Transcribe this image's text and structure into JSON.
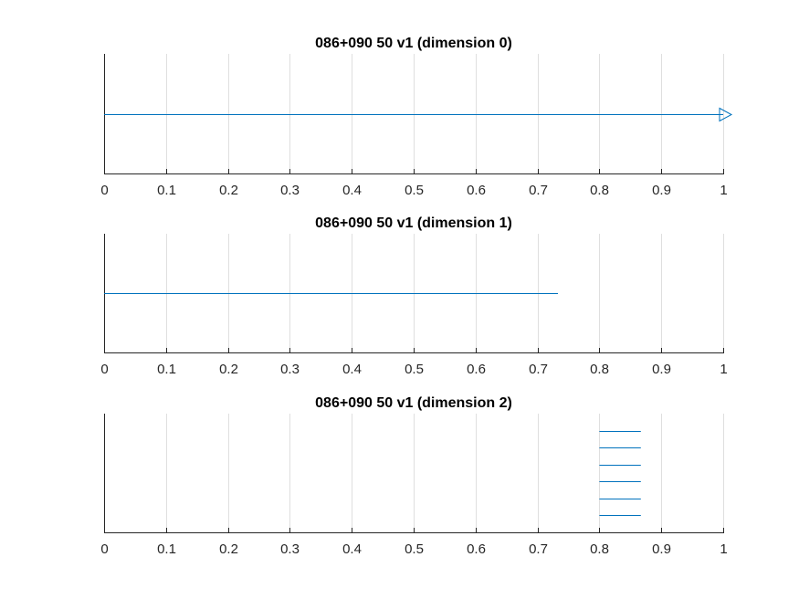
{
  "chart_data": [
    {
      "type": "line",
      "title": "086+090 50 v1 (dimension 0)",
      "xlabel": "",
      "ylabel": "",
      "xlim": [
        0,
        1
      ],
      "ylim": [
        0,
        1
      ],
      "grid": "x-major",
      "xticks": [
        0,
        0.1,
        0.2,
        0.3,
        0.4,
        0.5,
        0.6,
        0.7,
        0.8,
        0.9,
        1
      ],
      "xtick_labels": [
        "0",
        "0.1",
        "0.2",
        "0.3",
        "0.4",
        "0.5",
        "0.6",
        "0.7",
        "0.8",
        "0.9",
        "1"
      ],
      "series": [
        {
          "x": [
            0,
            1
          ],
          "y": [
            0.5,
            0.5
          ],
          "color": "#0072bd",
          "end_marker": "triangle-right"
        }
      ]
    },
    {
      "type": "line",
      "title": "086+090 50 v1 (dimension 1)",
      "xlabel": "",
      "ylabel": "",
      "xlim": [
        0,
        1
      ],
      "ylim": [
        0,
        1
      ],
      "grid": "x-major",
      "xticks": [
        0,
        0.1,
        0.2,
        0.3,
        0.4,
        0.5,
        0.6,
        0.7,
        0.8,
        0.9,
        1
      ],
      "xtick_labels": [
        "0",
        "0.1",
        "0.2",
        "0.3",
        "0.4",
        "0.5",
        "0.6",
        "0.7",
        "0.8",
        "0.9",
        "1"
      ],
      "series": [
        {
          "x": [
            0,
            0.733
          ],
          "y": [
            0.5,
            0.5
          ],
          "color": "#0072bd"
        }
      ]
    },
    {
      "type": "line",
      "title": "086+090 50 v1 (dimension 2)",
      "xlabel": "",
      "ylabel": "",
      "xlim": [
        0,
        1
      ],
      "ylim": [
        0,
        1
      ],
      "grid": "x-major",
      "xticks": [
        0,
        0.1,
        0.2,
        0.3,
        0.4,
        0.5,
        0.6,
        0.7,
        0.8,
        0.9,
        1
      ],
      "xtick_labels": [
        "0",
        "0.1",
        "0.2",
        "0.3",
        "0.4",
        "0.5",
        "0.6",
        "0.7",
        "0.8",
        "0.9",
        "1"
      ],
      "series": [
        {
          "x": [
            0.8,
            0.867
          ],
          "y": [
            0.857,
            0.857
          ],
          "color": "#0072bd"
        },
        {
          "x": [
            0.8,
            0.867
          ],
          "y": [
            0.714,
            0.714
          ],
          "color": "#0072bd"
        },
        {
          "x": [
            0.8,
            0.867
          ],
          "y": [
            0.571,
            0.571
          ],
          "color": "#0072bd"
        },
        {
          "x": [
            0.8,
            0.867
          ],
          "y": [
            0.429,
            0.429
          ],
          "color": "#0072bd"
        },
        {
          "x": [
            0.8,
            0.867
          ],
          "y": [
            0.286,
            0.286
          ],
          "color": "#0072bd"
        },
        {
          "x": [
            0.8,
            0.867
          ],
          "y": [
            0.143,
            0.143
          ],
          "color": "#0072bd"
        }
      ]
    }
  ]
}
